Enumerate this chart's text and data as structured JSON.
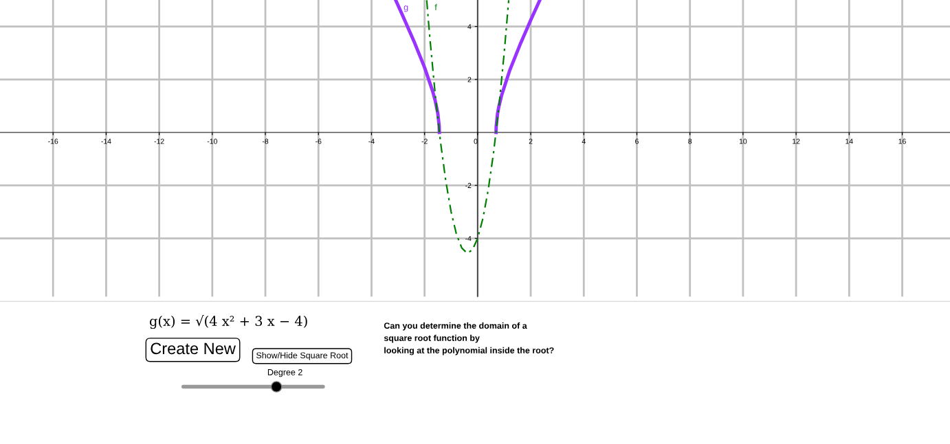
{
  "chart_data": {
    "type": "line",
    "series": [
      {
        "name": "g",
        "color": "#9933ff",
        "x": [
          -3.09,
          -2.8,
          -2.4,
          -2.0,
          -1.7,
          -1.6,
          -1.5,
          -1.45,
          -1.443,
          0,
          0.693,
          0.7,
          0.75,
          0.8,
          0.9,
          1.2,
          1.6,
          2.0,
          2.34
        ],
        "values": [
          5.0,
          4.35,
          3.44,
          2.45,
          1.57,
          1.2,
          0.71,
          0.24,
          0,
          null,
          0,
          0.24,
          0.71,
          0.98,
          1.39,
          2.32,
          3.32,
          4.24,
          4.99
        ]
      },
      {
        "name": "f",
        "color": "#008000",
        "line_style": "dashed",
        "x": [
          -1.92,
          -1.8,
          -1.6,
          -1.4,
          -1.2,
          -1.0,
          -0.8,
          -0.6,
          -0.4,
          -0.2,
          0,
          0.2,
          0.4,
          0.6,
          0.8,
          1.0,
          1.17
        ],
        "values": [
          4.99,
          3.56,
          1.44,
          -0.36,
          -1.84,
          -3.0,
          -3.84,
          -4.36,
          -4.56,
          -4.44,
          -4.0,
          -3.24,
          -2.16,
          -0.76,
          0.96,
          3.0,
          4.99
        ]
      }
    ],
    "xlim": [
      -18,
      17.8
    ],
    "ylim": [
      -6.2,
      5.0
    ],
    "xticks": [
      -16,
      -14,
      -12,
      -10,
      -8,
      -6,
      -4,
      -2,
      0,
      2,
      4,
      6,
      8,
      10,
      12,
      14,
      16
    ],
    "yticks": [
      -4,
      -2,
      2,
      4
    ],
    "grid": true,
    "marker": "none",
    "annotations": [
      "g(x) = √(4 x² + 3 x − 4)",
      "Create New",
      "Show/Hide Square Root",
      "Degree 2",
      "Can you determine the domain of a\nsquare root function by\nlooking at the polynomial inside the root?"
    ]
  }
}
